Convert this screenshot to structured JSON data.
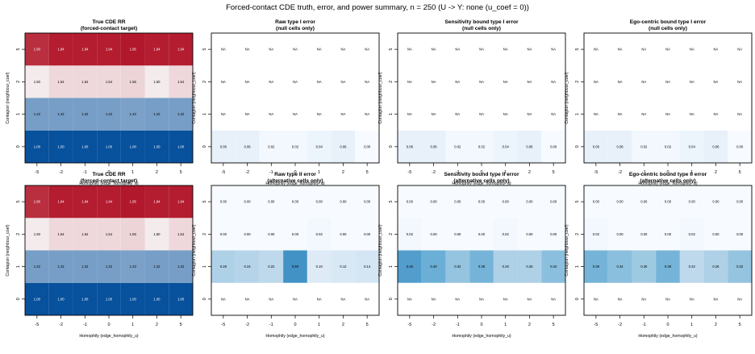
{
  "figure_title": "Forced-contact CDE truth, error, and power summary, n = 250 (U -> Y: none (u_coef = 0))",
  "chart_data": [
    {
      "type": "heatmap",
      "title": "True CDE RR",
      "subtitle": "(forced-contact target)",
      "xlabel": "Homophily (edge_homophily_u)",
      "ylabel": "Contagion (neighbour_coef)",
      "x": [
        "-5",
        "-2",
        "-1",
        "0",
        "1",
        "2",
        "5"
      ],
      "y": [
        "0",
        "1",
        "2",
        "5"
      ],
      "colormap": "diverging",
      "colors": {
        "low": "#08519c",
        "mid": "#f7f7f7",
        "high": "#b2182b"
      },
      "values": [
        [
          1.0,
          1.0,
          1.0,
          1.0,
          1.0,
          1.0,
          1.0
        ],
        [
          1.22,
          1.22,
          1.22,
          1.22,
          1.23,
          1.22,
          1.22
        ],
        [
          1.5,
          1.54,
          1.54,
          1.54,
          1.55,
          1.5,
          1.54
        ],
        [
          1.9,
          1.94,
          1.94,
          1.94,
          1.95,
          1.94,
          1.94
        ]
      ],
      "labels": [
        [
          "1.00",
          "1.00",
          "1.00",
          "1.00",
          "1.00",
          "1.00",
          "1.00"
        ],
        [
          "1.22",
          "1.22",
          "1.22",
          "1.22",
          "1.23",
          "1.22",
          "1.22"
        ],
        [
          "1.50",
          "1.54",
          "1.54",
          "1.54",
          "1.55",
          "1.50",
          "1.54"
        ],
        [
          "1.90",
          "1.94",
          "1.94",
          "1.94",
          "1.95",
          "1.94",
          "1.94"
        ]
      ]
    },
    {
      "type": "heatmap",
      "title": "Raw type I error",
      "subtitle": "(null cells only)",
      "xlabel": "Homophily (edge_homophily_u)",
      "ylabel": "Contagion (neighbour_coef)",
      "x": [
        "-5",
        "-2",
        "-1",
        "0",
        "1",
        "2",
        "5"
      ],
      "y": [
        "0",
        "1",
        "2",
        "5"
      ],
      "colormap": "blues",
      "values": [
        [
          0.06,
          0.06,
          0.02,
          0.02,
          0.04,
          0.06,
          0.0
        ],
        [
          null,
          null,
          null,
          null,
          null,
          null,
          null
        ],
        [
          null,
          null,
          null,
          null,
          null,
          null,
          null
        ],
        [
          null,
          null,
          null,
          null,
          null,
          null,
          null
        ]
      ],
      "labels": [
        [
          "0.06",
          "0.06",
          "0.02",
          "0.02",
          "0.04",
          "0.06",
          "0.00"
        ],
        [
          "NA",
          "NA",
          "NA",
          "NA",
          "NA",
          "NA",
          "NA"
        ],
        [
          "NA",
          "NA",
          "NA",
          "NA",
          "NA",
          "NA",
          "NA"
        ],
        [
          "NA",
          "NA",
          "NA",
          "NA",
          "NA",
          "NA",
          "NA"
        ]
      ]
    },
    {
      "type": "heatmap",
      "title": "Sensitivity bound type I error",
      "subtitle": "(null cells only)",
      "xlabel": "Homophily (edge_homophily_u)",
      "ylabel": "Contagion (neighbour_coef)",
      "x": [
        "-5",
        "-2",
        "-1",
        "0",
        "1",
        "2",
        "5"
      ],
      "y": [
        "0",
        "1",
        "2",
        "5"
      ],
      "colormap": "blues",
      "values": [
        [
          0.06,
          0.06,
          0.02,
          0.02,
          0.04,
          0.06,
          0.0
        ],
        [
          null,
          null,
          null,
          null,
          null,
          null,
          null
        ],
        [
          null,
          null,
          null,
          null,
          null,
          null,
          null
        ],
        [
          null,
          null,
          null,
          null,
          null,
          null,
          null
        ]
      ],
      "labels": [
        [
          "0.06",
          "0.06",
          "0.02",
          "0.02",
          "0.04",
          "0.06",
          "0.00"
        ],
        [
          "NA",
          "NA",
          "NA",
          "NA",
          "NA",
          "NA",
          "NA"
        ],
        [
          "NA",
          "NA",
          "NA",
          "NA",
          "NA",
          "NA",
          "NA"
        ],
        [
          "NA",
          "NA",
          "NA",
          "NA",
          "NA",
          "NA",
          "NA"
        ]
      ]
    },
    {
      "type": "heatmap",
      "title": "Ego-centric bound type I error",
      "subtitle": "(null cells only)",
      "xlabel": "Homophily (edge_homophily_u)",
      "ylabel": "Contagion (neighbour_coef)",
      "x": [
        "-5",
        "-2",
        "-1",
        "0",
        "1",
        "2",
        "5"
      ],
      "y": [
        "0",
        "1",
        "2",
        "5"
      ],
      "colormap": "blues",
      "values": [
        [
          0.06,
          0.06,
          0.02,
          0.02,
          0.04,
          0.06,
          0.0
        ],
        [
          null,
          null,
          null,
          null,
          null,
          null,
          null
        ],
        [
          null,
          null,
          null,
          null,
          null,
          null,
          null
        ],
        [
          null,
          null,
          null,
          null,
          null,
          null,
          null
        ]
      ],
      "labels": [
        [
          "0.06",
          "0.06",
          "0.02",
          "0.02",
          "0.04",
          "0.06",
          "0.00"
        ],
        [
          "NA",
          "NA",
          "NA",
          "NA",
          "NA",
          "NA",
          "NA"
        ],
        [
          "NA",
          "NA",
          "NA",
          "NA",
          "NA",
          "NA",
          "NA"
        ],
        [
          "NA",
          "NA",
          "NA",
          "NA",
          "NA",
          "NA",
          "NA"
        ]
      ]
    },
    {
      "type": "heatmap",
      "title": "True CDE RR",
      "subtitle": "(forced-contact target)",
      "xlabel": "Homophily (edge_homophily_u)",
      "ylabel": "Contagion (neighbour_coef)",
      "x": [
        "-5",
        "-2",
        "-1",
        "0",
        "1",
        "2",
        "5"
      ],
      "y": [
        "0",
        "1",
        "2",
        "5"
      ],
      "colormap": "diverging",
      "colors": {
        "low": "#08519c",
        "mid": "#f7f7f7",
        "high": "#b2182b"
      },
      "values": [
        [
          1.0,
          1.0,
          1.0,
          1.0,
          1.0,
          1.0,
          1.0
        ],
        [
          1.22,
          1.22,
          1.22,
          1.22,
          1.23,
          1.22,
          1.22
        ],
        [
          1.5,
          1.54,
          1.54,
          1.54,
          1.55,
          1.5,
          1.54
        ],
        [
          1.9,
          1.94,
          1.94,
          1.94,
          1.95,
          1.94,
          1.94
        ]
      ],
      "labels": [
        [
          "1.00",
          "1.00",
          "1.00",
          "1.00",
          "1.00",
          "1.00",
          "1.00"
        ],
        [
          "1.22",
          "1.22",
          "1.22",
          "1.22",
          "1.23",
          "1.22",
          "1.22"
        ],
        [
          "1.50",
          "1.54",
          "1.54",
          "1.54",
          "1.55",
          "1.50",
          "1.54"
        ],
        [
          "1.90",
          "1.94",
          "1.94",
          "1.94",
          "1.95",
          "1.94",
          "1.94"
        ]
      ]
    },
    {
      "type": "heatmap",
      "title": "Raw type II error",
      "subtitle": "(alternative cells only)",
      "xlabel": "Homophily (edge_homophily_u)",
      "ylabel": "Contagion (neighbour_coef)",
      "x": [
        "-5",
        "-2",
        "-1",
        "0",
        "1",
        "2",
        "5"
      ],
      "y": [
        "0",
        "1",
        "2",
        "5"
      ],
      "colormap": "blues",
      "values": [
        [
          null,
          null,
          null,
          null,
          null,
          null,
          null
        ],
        [
          0.26,
          0.24,
          0.22,
          0.5,
          0.1,
          0.12,
          0.14
        ],
        [
          0.0,
          0.0,
          0.0,
          0.0,
          0.02,
          0.0,
          0.0
        ],
        [
          0.0,
          0.0,
          0.0,
          0.0,
          0.0,
          0.0,
          0.0
        ]
      ],
      "labels": [
        [
          "NA",
          "NA",
          "NA",
          "NA",
          "NA",
          "NA",
          "NA"
        ],
        [
          "0.26",
          "0.24",
          "0.22",
          "0.50",
          "0.10",
          "0.12",
          "0.14"
        ],
        [
          "0.00",
          "0.00",
          "0.00",
          "0.00",
          "0.02",
          "0.00",
          "0.00"
        ],
        [
          "0.00",
          "0.00",
          "0.00",
          "0.00",
          "0.00",
          "0.00",
          "0.00"
        ]
      ]
    },
    {
      "type": "heatmap",
      "title": "Sensitivity bound type II error",
      "subtitle": "(alternative cells only)",
      "xlabel": "Homophily (edge_homophily_u)",
      "ylabel": "Contagion (neighbour_coef)",
      "x": [
        "-5",
        "-2",
        "-1",
        "0",
        "1",
        "2",
        "5"
      ],
      "y": [
        "0",
        "1",
        "2",
        "5"
      ],
      "colormap": "blues",
      "values": [
        [
          null,
          null,
          null,
          null,
          null,
          null,
          null
        ],
        [
          0.46,
          0.4,
          0.32,
          0.38,
          0.26,
          0.26,
          0.34
        ],
        [
          0.02,
          0.0,
          0.0,
          0.0,
          0.02,
          0.0,
          0.0
        ],
        [
          0.0,
          0.0,
          0.0,
          0.0,
          0.0,
          0.0,
          0.0
        ]
      ],
      "labels": [
        [
          "NA",
          "NA",
          "NA",
          "NA",
          "NA",
          "NA",
          "NA"
        ],
        [
          "0.46",
          "0.40",
          "0.32",
          "0.38",
          "0.26",
          "0.26",
          "0.34"
        ],
        [
          "0.02",
          "0.00",
          "0.00",
          "0.00",
          "0.02",
          "0.00",
          "0.00"
        ],
        [
          "0.00",
          "0.00",
          "0.00",
          "0.00",
          "0.00",
          "0.00",
          "0.00"
        ]
      ]
    },
    {
      "type": "heatmap",
      "title": "Ego-centric bound type II error",
      "subtitle": "(alternative cells only)",
      "xlabel": "Homophily (edge_homophily_u)",
      "ylabel": "Contagion (neighbour_coef)",
      "x": [
        "-5",
        "-2",
        "-1",
        "0",
        "1",
        "2",
        "5"
      ],
      "y": [
        "0",
        "1",
        "2",
        "5"
      ],
      "colormap": "blues",
      "values": [
        [
          null,
          null,
          null,
          null,
          null,
          null,
          null
        ],
        [
          0.38,
          0.34,
          0.3,
          0.38,
          0.22,
          0.26,
          0.32
        ],
        [
          0.02,
          0.0,
          0.0,
          0.0,
          0.02,
          0.0,
          0.0
        ],
        [
          0.0,
          0.0,
          0.0,
          0.0,
          0.0,
          0.0,
          0.0
        ]
      ],
      "labels": [
        [
          "NA",
          "NA",
          "NA",
          "NA",
          "NA",
          "NA",
          "NA"
        ],
        [
          "0.38",
          "0.34",
          "0.30",
          "0.38",
          "0.22",
          "0.26",
          "0.32"
        ],
        [
          "0.02",
          "0.00",
          "0.00",
          "0.00",
          "0.02",
          "0.00",
          "0.00"
        ],
        [
          "0.00",
          "0.00",
          "0.00",
          "0.00",
          "0.00",
          "0.00",
          "0.00"
        ]
      ]
    }
  ]
}
